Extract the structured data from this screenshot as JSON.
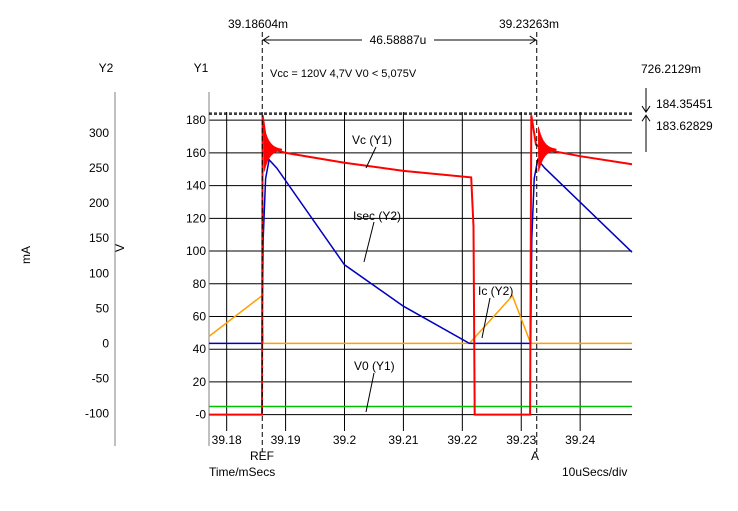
{
  "chart_data": {
    "type": "line",
    "annotation": "Vcc = 120V   4,7V  V0 < 5,075V",
    "y1_axis": {
      "name": "Y1",
      "unit": "V",
      "ylim": [
        -10,
        185
      ],
      "ticks": [
        "180",
        "160",
        "140",
        "120",
        "100",
        "80",
        "60",
        "40",
        "20",
        "-0"
      ],
      "tick_values": [
        180,
        160,
        140,
        120,
        100,
        80,
        60,
        40,
        20,
        0
      ]
    },
    "y2_axis": {
      "name": "Y2",
      "unit": "mA",
      "ylim": [
        -125,
        330
      ],
      "ticks": [
        "300",
        "250",
        "200",
        "150",
        "100",
        "50",
        "0",
        "-50",
        "-100"
      ],
      "tick_values": [
        300,
        250,
        200,
        150,
        100,
        50,
        0,
        -50,
        -100
      ]
    },
    "x_axis": {
      "label": "Time/mSecs",
      "scale_label": "10uSecs/div",
      "xlim": [
        39.177,
        39.2488
      ],
      "ticks": [
        "39.18",
        "39.19",
        "39.2",
        "39.21",
        "39.22",
        "39.23",
        "39.24"
      ],
      "tick_values": [
        39.18,
        39.19,
        39.2,
        39.21,
        39.22,
        39.23,
        39.24
      ],
      "grid": true
    },
    "cursors": [
      {
        "name": "REF",
        "x": 39.18604,
        "x_label": "39.18604m"
      },
      {
        "name": "A",
        "x": 39.23263,
        "x_label": "39.23263m"
      }
    ],
    "cursor_delta": "46.58887u",
    "level_markers": {
      "top_label": "726.2129m",
      "upper": "184.35451",
      "lower": "183.62829",
      "upper_value": 184.35451,
      "lower_value": 183.62829
    },
    "series": [
      {
        "name": "Vc (Y1)",
        "axis": "Y1",
        "color": "#ff0000",
        "points": [
          [
            39.177,
            0
          ],
          [
            39.186,
            0
          ],
          [
            39.1861,
            183
          ],
          [
            39.1868,
            165
          ],
          [
            39.188,
            162
          ],
          [
            39.19,
            160
          ],
          [
            39.2,
            154
          ],
          [
            39.21,
            149
          ],
          [
            39.2215,
            145
          ],
          [
            39.2219,
            115
          ],
          [
            39.2221,
            0
          ],
          [
            39.2315,
            0
          ],
          [
            39.2317,
            183
          ],
          [
            39.2325,
            165
          ],
          [
            39.234,
            162
          ],
          [
            39.24,
            158
          ],
          [
            39.2488,
            153
          ]
        ]
      },
      {
        "name": "Isec (Y2)",
        "axis": "Y2",
        "color": "#0000c0",
        "points": [
          [
            39.177,
            0
          ],
          [
            39.186,
            0
          ],
          [
            39.1862,
            150
          ],
          [
            39.1866,
            235
          ],
          [
            39.1872,
            262
          ],
          [
            39.1885,
            250
          ],
          [
            39.2,
            112
          ],
          [
            39.21,
            53
          ],
          [
            39.2212,
            0
          ],
          [
            39.2316,
            0
          ],
          [
            39.2318,
            150
          ],
          [
            39.2322,
            235
          ],
          [
            39.2328,
            262
          ],
          [
            39.234,
            250
          ],
          [
            39.2488,
            130
          ]
        ]
      },
      {
        "name": "Ic (Y2)",
        "axis": "Y2",
        "color": "#ffa000",
        "points": [
          [
            39.177,
            10
          ],
          [
            39.186,
            68
          ],
          [
            39.1862,
            0
          ],
          [
            39.2212,
            0
          ],
          [
            39.2285,
            68
          ],
          [
            39.2316,
            0
          ],
          [
            39.2488,
            0
          ]
        ]
      },
      {
        "name": "V0 (Y1)",
        "axis": "Y1",
        "color": "#00c000",
        "points": [
          [
            39.177,
            5
          ],
          [
            39.2488,
            5
          ]
        ]
      }
    ],
    "series_labels": [
      {
        "text": "Vc (Y1)",
        "series": "Vc (Y1)"
      },
      {
        "text": "Isec (Y2)",
        "series": "Isec (Y2)"
      },
      {
        "text": "Ic (Y2)",
        "series": "Ic (Y2)"
      },
      {
        "text": "V0 (Y1)",
        "series": "V0 (Y1)"
      }
    ]
  }
}
